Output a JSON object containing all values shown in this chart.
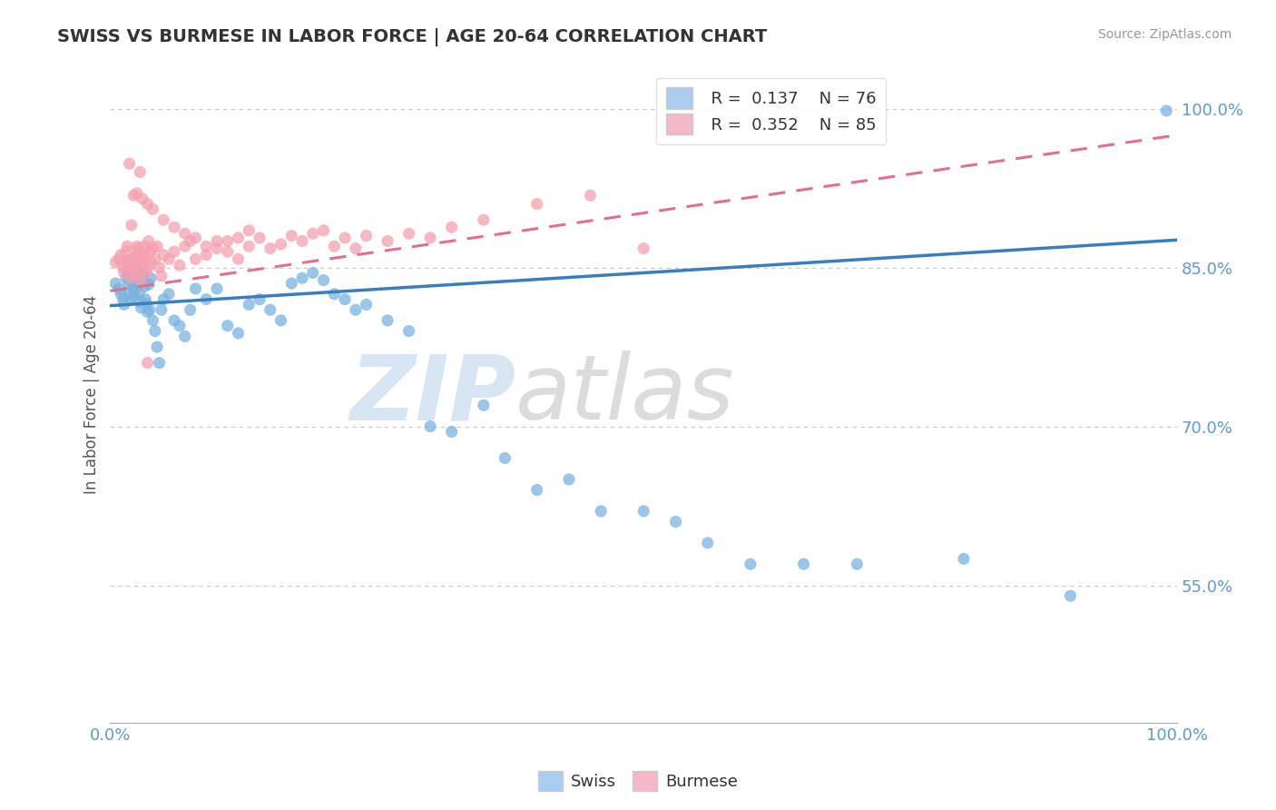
{
  "title": "SWISS VS BURMESE IN LABOR FORCE | AGE 20-64 CORRELATION CHART",
  "source_text": "Source: ZipAtlas.com",
  "ylabel": "In Labor Force | Age 20-64",
  "xmin": 0.0,
  "xmax": 1.0,
  "ymin": 0.42,
  "ymax": 1.04,
  "yticks": [
    0.55,
    0.7,
    0.85,
    1.0
  ],
  "ytick_labels": [
    "55.0%",
    "70.0%",
    "85.0%",
    "100.0%"
  ],
  "xticks": [
    0.0,
    1.0
  ],
  "xtick_labels": [
    "0.0%",
    "100.0%"
  ],
  "swiss_color": "#7ab3e0",
  "burmese_color": "#f4a0b0",
  "swiss_R": 0.137,
  "swiss_N": 76,
  "burmese_R": 0.352,
  "burmese_N": 85,
  "title_color": "#333333",
  "axis_label_color": "#555555",
  "tick_label_color": "#5b9bd5",
  "grid_color": "#c8c8c8",
  "swiss_line_color": "#3a7ebf",
  "burmese_line_color": "#e07090",
  "watermark_zip_color": "#b8d0ea",
  "watermark_atlas_color": "#c0c0c0",
  "legend_swiss_color": "#aaccee",
  "legend_burmese_color": "#f4b8c8",
  "swiss_trend_x": [
    0.0,
    1.0
  ],
  "swiss_trend_y": [
    0.814,
    0.876
  ],
  "burmese_trend_x": [
    0.0,
    1.0
  ],
  "burmese_trend_y": [
    0.828,
    0.975
  ],
  "swiss_points_x": [
    0.005,
    0.008,
    0.01,
    0.012,
    0.013,
    0.015,
    0.016,
    0.017,
    0.018,
    0.019,
    0.02,
    0.021,
    0.022,
    0.022,
    0.023,
    0.024,
    0.025,
    0.026,
    0.027,
    0.028,
    0.029,
    0.03,
    0.031,
    0.032,
    0.033,
    0.034,
    0.035,
    0.036,
    0.037,
    0.038,
    0.04,
    0.042,
    0.044,
    0.046,
    0.048,
    0.05,
    0.055,
    0.06,
    0.065,
    0.07,
    0.075,
    0.08,
    0.09,
    0.1,
    0.11,
    0.12,
    0.13,
    0.14,
    0.15,
    0.16,
    0.17,
    0.18,
    0.19,
    0.2,
    0.21,
    0.22,
    0.23,
    0.24,
    0.26,
    0.28,
    0.3,
    0.32,
    0.35,
    0.37,
    0.4,
    0.43,
    0.46,
    0.5,
    0.53,
    0.56,
    0.6,
    0.65,
    0.7,
    0.8,
    0.9,
    0.99
  ],
  "swiss_points_y": [
    0.835,
    0.83,
    0.825,
    0.82,
    0.815,
    0.84,
    0.845,
    0.835,
    0.825,
    0.82,
    0.838,
    0.832,
    0.828,
    0.845,
    0.822,
    0.842,
    0.836,
    0.848,
    0.826,
    0.818,
    0.812,
    0.838,
    0.844,
    0.832,
    0.82,
    0.816,
    0.808,
    0.834,
    0.81,
    0.84,
    0.8,
    0.79,
    0.775,
    0.76,
    0.81,
    0.82,
    0.825,
    0.8,
    0.795,
    0.785,
    0.81,
    0.83,
    0.82,
    0.83,
    0.795,
    0.788,
    0.815,
    0.82,
    0.81,
    0.8,
    0.835,
    0.84,
    0.845,
    0.838,
    0.825,
    0.82,
    0.81,
    0.815,
    0.8,
    0.79,
    0.7,
    0.695,
    0.72,
    0.67,
    0.64,
    0.65,
    0.62,
    0.62,
    0.61,
    0.59,
    0.57,
    0.57,
    0.57,
    0.575,
    0.54,
    0.998
  ],
  "burmese_points_x": [
    0.005,
    0.008,
    0.01,
    0.012,
    0.013,
    0.015,
    0.016,
    0.017,
    0.018,
    0.019,
    0.02,
    0.021,
    0.022,
    0.023,
    0.024,
    0.025,
    0.026,
    0.027,
    0.028,
    0.029,
    0.03,
    0.031,
    0.032,
    0.033,
    0.034,
    0.035,
    0.036,
    0.037,
    0.038,
    0.04,
    0.042,
    0.044,
    0.046,
    0.048,
    0.05,
    0.055,
    0.06,
    0.065,
    0.07,
    0.075,
    0.08,
    0.09,
    0.1,
    0.11,
    0.12,
    0.13,
    0.14,
    0.15,
    0.16,
    0.17,
    0.18,
    0.19,
    0.2,
    0.21,
    0.22,
    0.23,
    0.24,
    0.26,
    0.28,
    0.3,
    0.025,
    0.03,
    0.035,
    0.04,
    0.05,
    0.06,
    0.07,
    0.08,
    0.09,
    0.1,
    0.11,
    0.12,
    0.13,
    0.035,
    0.025,
    0.02,
    0.015,
    0.018,
    0.022,
    0.028,
    0.32,
    0.35,
    0.4,
    0.45,
    0.5
  ],
  "burmese_points_y": [
    0.855,
    0.858,
    0.862,
    0.85,
    0.845,
    0.865,
    0.87,
    0.855,
    0.848,
    0.84,
    0.858,
    0.852,
    0.848,
    0.86,
    0.842,
    0.862,
    0.856,
    0.868,
    0.846,
    0.838,
    0.855,
    0.862,
    0.87,
    0.858,
    0.845,
    0.85,
    0.875,
    0.865,
    0.855,
    0.868,
    0.858,
    0.87,
    0.85,
    0.842,
    0.862,
    0.858,
    0.865,
    0.852,
    0.87,
    0.875,
    0.858,
    0.862,
    0.875,
    0.865,
    0.858,
    0.87,
    0.878,
    0.868,
    0.872,
    0.88,
    0.875,
    0.882,
    0.885,
    0.87,
    0.878,
    0.868,
    0.88,
    0.875,
    0.882,
    0.878,
    0.92,
    0.915,
    0.91,
    0.905,
    0.895,
    0.888,
    0.882,
    0.878,
    0.87,
    0.868,
    0.875,
    0.878,
    0.885,
    0.76,
    0.87,
    0.89,
    0.855,
    0.948,
    0.918,
    0.94,
    0.888,
    0.895,
    0.91,
    0.918,
    0.868
  ]
}
